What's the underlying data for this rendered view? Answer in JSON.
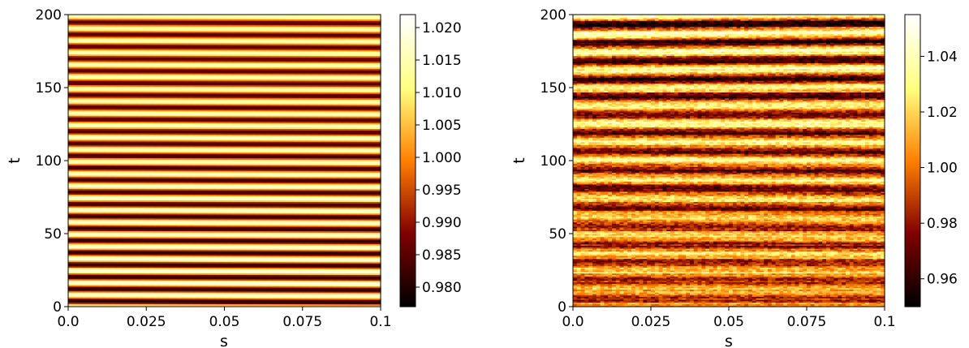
{
  "chart_data": [
    {
      "type": "heatmap",
      "title": "",
      "xlabel": "s",
      "ylabel": "t",
      "xlim": [
        0.0,
        0.1
      ],
      "ylim": [
        0,
        200
      ],
      "x_ticks": [
        0.0,
        0.025,
        0.05,
        0.075,
        0.1
      ],
      "x_tick_labels": [
        "0.0",
        "0.025",
        "0.05",
        "0.075",
        "0.1"
      ],
      "y_ticks": [
        0,
        50,
        100,
        150,
        200
      ],
      "y_tick_labels": [
        "0",
        "50",
        "100",
        "150",
        "200"
      ],
      "colormap": "afmhot",
      "colorbar": {
        "min": 0.977,
        "max": 1.022,
        "ticks": [
          0.98,
          0.985,
          0.99,
          0.995,
          1.0,
          1.005,
          1.01,
          1.015,
          1.02
        ],
        "tick_labels": [
          "0.980",
          "0.985",
          "0.990",
          "0.995",
          "1.000",
          "1.005",
          "1.010",
          "1.015",
          "1.020"
        ]
      },
      "pattern": {
        "description_free": true,
        "mean": 1.0,
        "amplitude": 0.02,
        "period_t": 8.3,
        "drift_s": 0.6
      }
    },
    {
      "type": "heatmap",
      "title": "",
      "xlabel": "s",
      "ylabel": "t",
      "xlim": [
        0.0,
        0.1
      ],
      "ylim": [
        0,
        200
      ],
      "x_ticks": [
        0.0,
        0.025,
        0.05,
        0.075,
        0.1
      ],
      "x_tick_labels": [
        "0.0",
        "0.025",
        "0.05",
        "0.075",
        "0.1"
      ],
      "y_ticks": [
        0,
        50,
        100,
        150,
        200
      ],
      "y_tick_labels": [
        "0",
        "50",
        "100",
        "150",
        "200"
      ],
      "colormap": "afmhot",
      "colorbar": {
        "min": 0.95,
        "max": 1.055,
        "ticks": [
          0.96,
          0.98,
          1.0,
          1.02,
          1.04
        ],
        "tick_labels": [
          "0.96",
          "0.98",
          "1.00",
          "1.02",
          "1.04"
        ]
      },
      "pattern": {
        "mean": 1.0,
        "amplitude": 0.045,
        "period_t": 12.5,
        "noise": 0.012
      }
    }
  ]
}
